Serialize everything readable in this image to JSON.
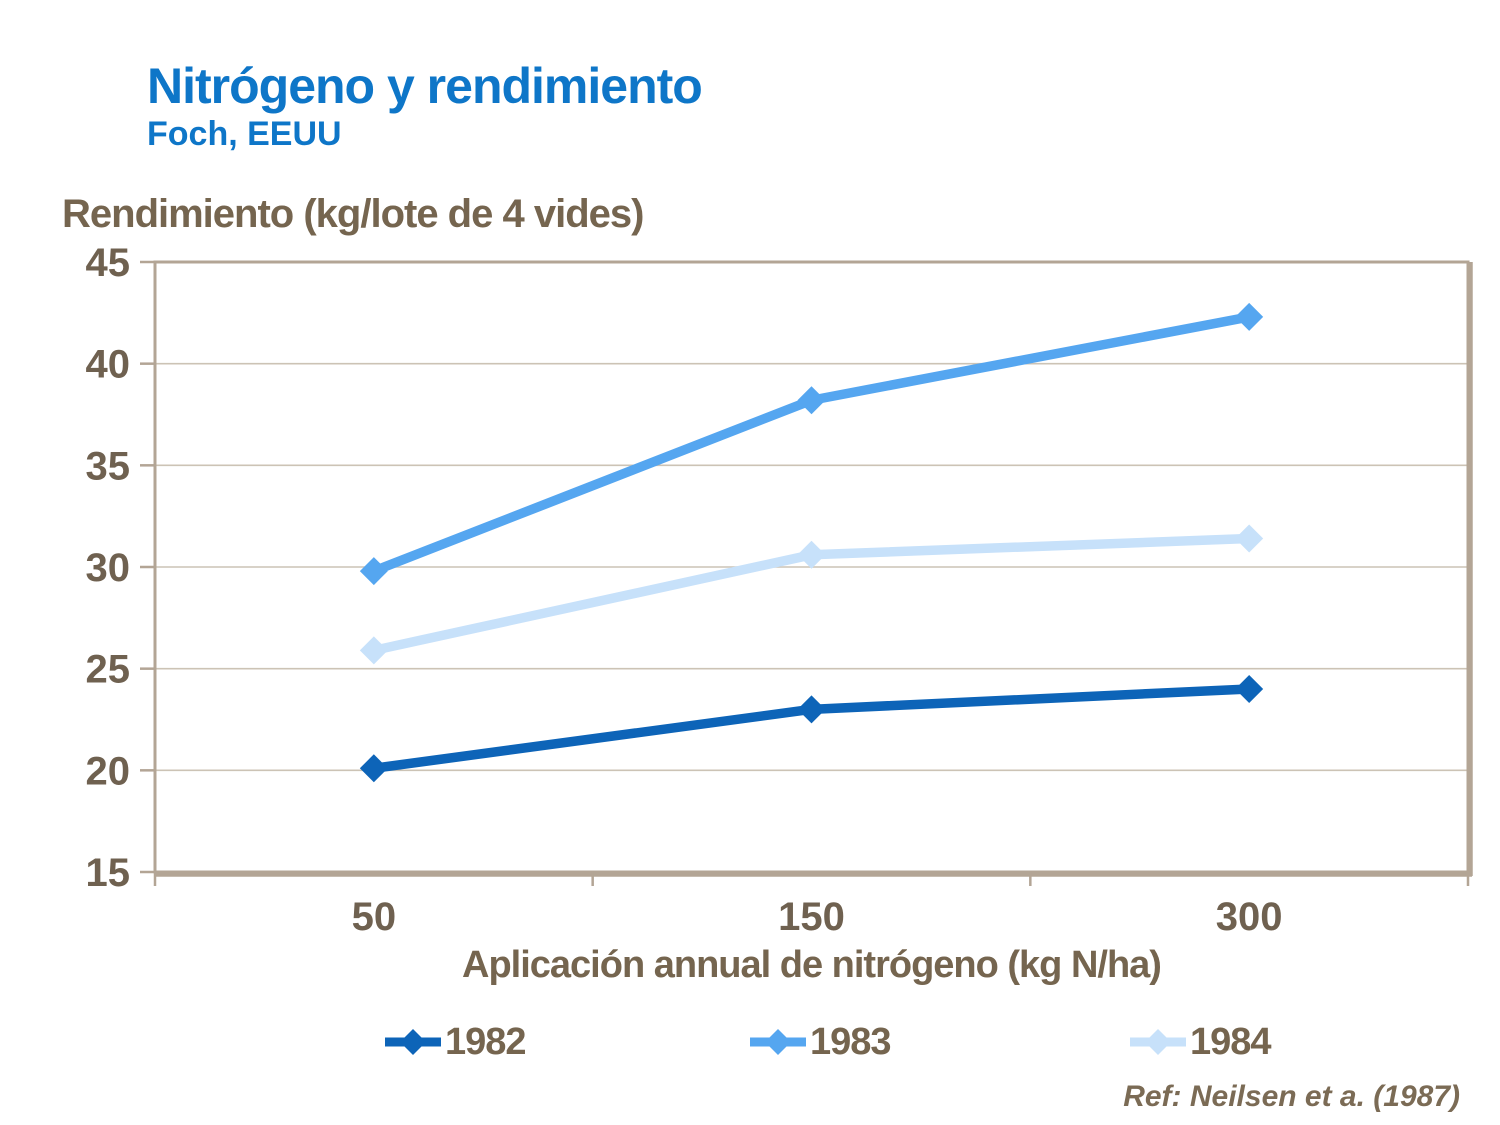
{
  "slide": {
    "title": "Nitrógeno y rendimiento",
    "subtitle": "Foch, EEUU",
    "reference": "Ref: Neilsen et a. (1987)"
  },
  "chart_data": {
    "type": "line",
    "title": "",
    "y_axis_title": "Rendimiento (kg/lote de 4 vides)",
    "x_axis_title": "Aplicación annual de nitrógeno (kg N/ha)",
    "categories": [
      "50",
      "150",
      "300"
    ],
    "series": [
      {
        "name": "1982",
        "values": [
          20.1,
          23.0,
          24.0
        ],
        "color": "#0D64B8"
      },
      {
        "name": "1983",
        "values": [
          29.8,
          38.2,
          42.3
        ],
        "color": "#55A6F0"
      },
      {
        "name": "1984",
        "values": [
          25.9,
          30.6,
          31.4
        ],
        "color": "#C7E1FA"
      }
    ],
    "ylim": [
      15,
      45
    ],
    "yticks": [
      15,
      20,
      25,
      30,
      35,
      40,
      45
    ],
    "grid": true,
    "legend_position": "bottom",
    "marker": "diamond"
  },
  "colors": {
    "title_blue": "#0E76C8",
    "text_brown": "#75654F",
    "tick_brown": "#6F6150",
    "grid_line": "#CCC3B5",
    "axis_border": "#B3A595",
    "background": "#FFFFFF"
  }
}
